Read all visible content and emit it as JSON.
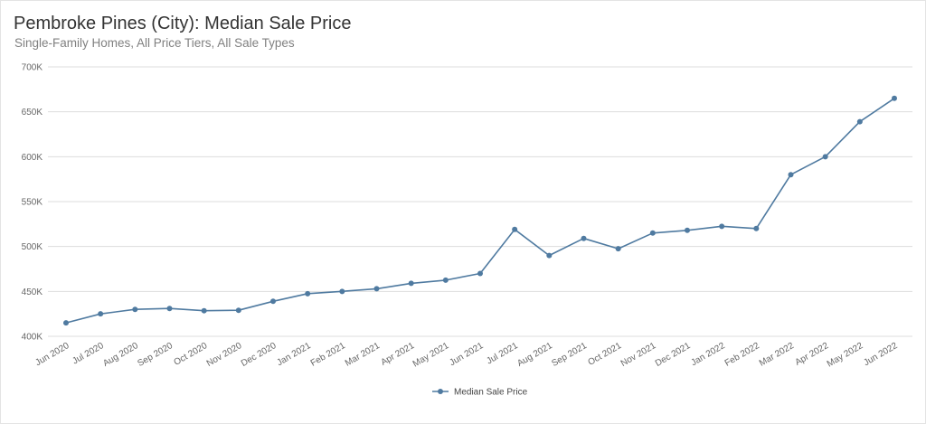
{
  "header": {
    "title": "Pembroke Pines (City): Median Sale Price",
    "subtitle": "Single-Family Homes, All Price Tiers, All Sale Types"
  },
  "colors": {
    "series": "#4f7aa0",
    "grid": "#dddddd",
    "axis_text": "#666666"
  },
  "chart_data": {
    "type": "line",
    "title": "Pembroke Pines (City): Median Sale Price",
    "subtitle": "Single-Family Homes, All Price Tiers, All Sale Types",
    "xlabel": "",
    "ylabel": "",
    "categories": [
      "Jun 2020",
      "Jul 2020",
      "Aug 2020",
      "Sep 2020",
      "Oct 2020",
      "Nov 2020",
      "Dec 2020",
      "Jan 2021",
      "Feb 2021",
      "Mar 2021",
      "Apr 2021",
      "May 2021",
      "Jun 2021",
      "Jul 2021",
      "Aug 2021",
      "Sep 2021",
      "Oct 2021",
      "Nov 2021",
      "Dec 2021",
      "Jan 2022",
      "Feb 2022",
      "Mar 2022",
      "Apr 2022",
      "May 2022",
      "Jun 2022"
    ],
    "series": [
      {
        "name": "Median Sale Price",
        "values": [
          415000,
          425000,
          430000,
          431000,
          428500,
          429000,
          439000,
          447500,
          450000,
          453000,
          459000,
          462500,
          470000,
          519000,
          490000,
          509000,
          497500,
          515000,
          518000,
          522500,
          520000,
          580000,
          600000,
          639000,
          665000
        ]
      }
    ],
    "ylim": [
      400000,
      700000
    ],
    "yticks": [
      400000,
      450000,
      500000,
      550000,
      600000,
      650000,
      700000
    ],
    "ytick_labels": [
      "400K",
      "450K",
      "500K",
      "550K",
      "600K",
      "650K",
      "700K"
    ],
    "grid": true,
    "legend": "bottom-center"
  }
}
